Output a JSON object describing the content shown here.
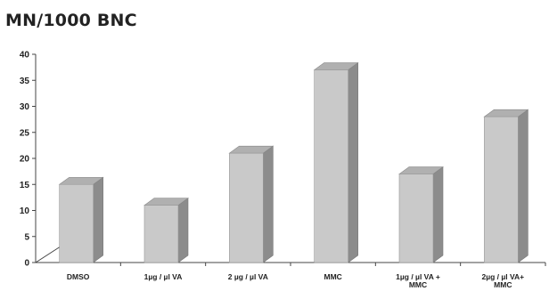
{
  "chart_data": {
    "type": "bar",
    "title": "MN/1000 BNC",
    "categories": [
      [
        "DMSO"
      ],
      [
        "1µg / µl VA"
      ],
      [
        "2 µg / µl  VA"
      ],
      [
        "MMC"
      ],
      [
        "1µg / µl  VA  +",
        "MMC"
      ],
      [
        "2µg / µl  VA+",
        "MMC"
      ]
    ],
    "values": [
      15,
      11,
      21,
      37,
      17,
      28
    ],
    "ylim": [
      0,
      40
    ],
    "yticks": [
      0,
      5,
      10,
      15,
      20,
      25,
      30,
      35,
      40
    ],
    "xlabel": "",
    "ylabel": "",
    "grid": false,
    "legend": "none",
    "style": "3d",
    "colors": {
      "bar_front": "#c9c9c9",
      "bar_side": "#8c8c8c",
      "bar_top": "#b0b0b0",
      "axis": "#444444",
      "text": "#222222"
    }
  }
}
